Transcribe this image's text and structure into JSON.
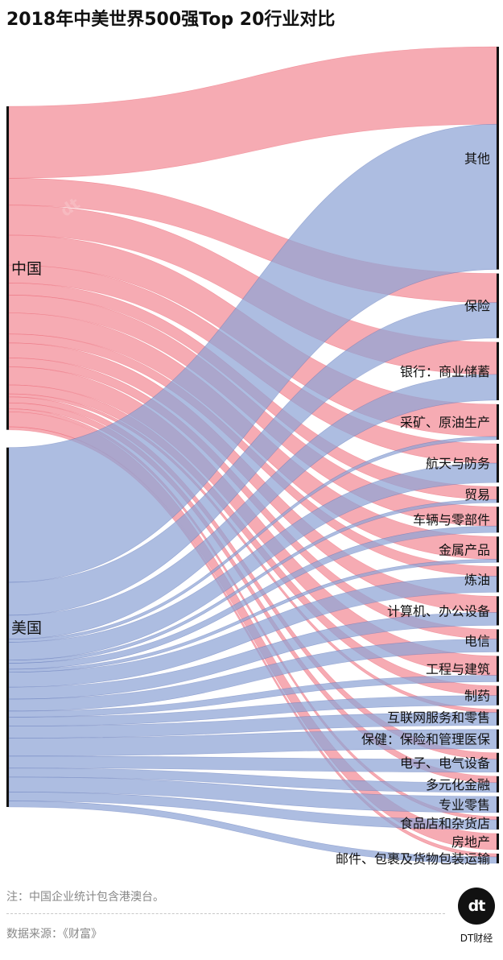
{
  "title": "2018年中美世界500强Top 20行业对比",
  "note": "注：中国企业统计包含港澳台。",
  "source": "数据来源：《财富》",
  "brand": "DT财经",
  "logo_text": "dt",
  "colors": {
    "china": "#f28a96",
    "usa": "#8ea3d6",
    "china_stroke": "#e5404f",
    "usa_stroke": "#3b55a6"
  },
  "chart_data": {
    "type": "sankey",
    "sources": [
      {
        "name": "中国",
        "color": "china"
      },
      {
        "name": "美国",
        "color": "usa"
      }
    ],
    "targets": [
      "其他",
      "保险",
      "银行：商业储蓄",
      "采矿、原油生产",
      "航天与防务",
      "贸易",
      "车辆与零部件",
      "金属产品",
      "炼油",
      "计算机、办公设备",
      "电信",
      "工程与建筑",
      "制药",
      "互联网服务和零售",
      "保健：保险和管理医保",
      "电子、电气设备",
      "多元化金融",
      "专业零售",
      "食品店和杂货店",
      "房地产",
      "邮件、包裹及货物包装运输"
    ],
    "flows": {
      "中国": [
        24,
        9,
        10,
        10,
        6,
        4,
        6,
        7,
        3,
        5,
        3,
        6,
        3,
        1,
        0,
        2,
        2,
        0,
        1,
        5,
        1
      ],
      "美国": [
        45,
        11,
        8,
        1,
        6,
        1,
        2,
        1,
        5,
        4,
        4,
        2,
        3,
        4,
        6,
        4,
        3,
        5,
        3,
        0,
        2
      ]
    }
  }
}
